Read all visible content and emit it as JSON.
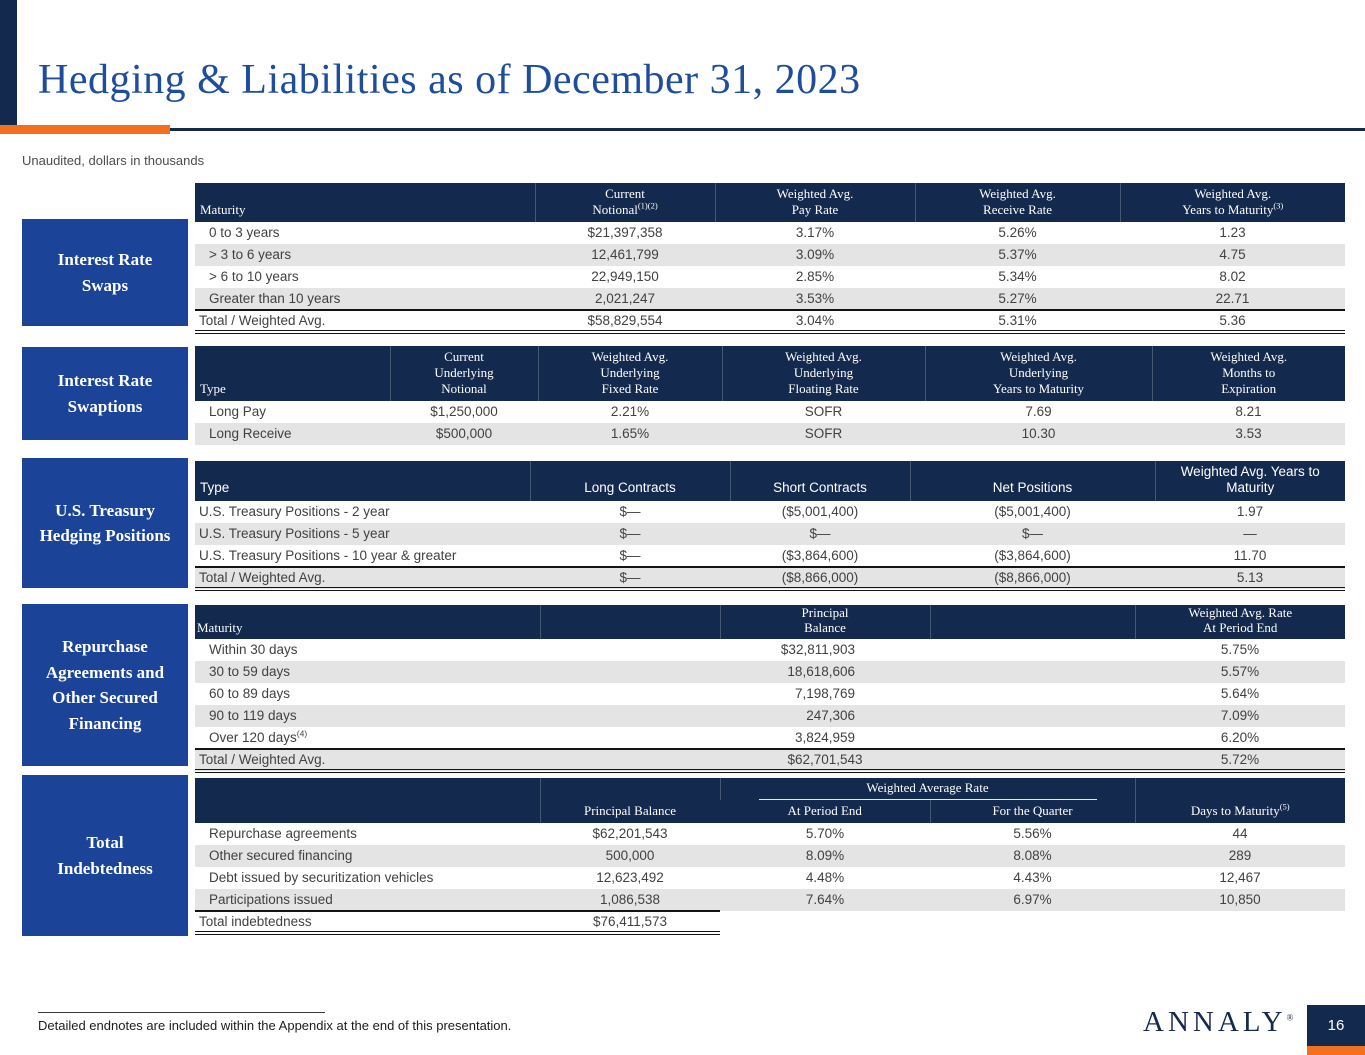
{
  "page": {
    "title": "Hedging & Liabilities as of December 31, 2023",
    "subtitle": "Unaudited, dollars in thousands",
    "footnote": "Detailed endnotes are included within the Appendix at the end of this presentation.",
    "logo_text": "ANNALY",
    "logo_mark": "®",
    "page_number": "16"
  },
  "colors": {
    "header_navy": "#14294e",
    "sidebar_blue": "#1b4397",
    "accent_orange": "#f37021",
    "title_blue": "#1e4d9c",
    "row_stripe": "#e4e4e4",
    "body_text": "#414141"
  },
  "sections": [
    {
      "id": "interest-rate-swaps",
      "label": "Interest Rate\nSwaps",
      "columns": [
        {
          "lines": [
            "Maturity"
          ],
          "align": "left"
        },
        {
          "lines": [
            "Current",
            "Notional"
          ],
          "sup": "(1)(2)"
        },
        {
          "lines": [
            "Weighted Avg.",
            "Pay Rate"
          ]
        },
        {
          "lines": [
            "Weighted Avg.",
            "Receive Rate"
          ]
        },
        {
          "lines": [
            "Weighted Avg.",
            "Years to Maturity"
          ],
          "sup": "(3)"
        }
      ],
      "rows": [
        [
          "0 to 3 years",
          "$21,397,358",
          "3.17%",
          "5.26%",
          "1.23"
        ],
        [
          "> 3 to 6 years",
          "12,461,799",
          "3.09%",
          "5.37%",
          "4.75"
        ],
        [
          "> 6 to 10 years",
          "22,949,150",
          "2.85%",
          "5.34%",
          "8.02"
        ],
        [
          "Greater than 10 years",
          "2,021,247",
          "3.53%",
          "5.27%",
          "22.71"
        ]
      ],
      "total": [
        "Total / Weighted Avg.",
        "$58,829,554",
        "3.04%",
        "5.31%",
        "5.36"
      ]
    },
    {
      "id": "interest-rate-swaptions",
      "label": "Interest Rate\nSwaptions",
      "columns": [
        {
          "lines": [
            "Type"
          ],
          "align": "left"
        },
        {
          "lines": [
            "Current",
            "Underlying",
            "Notional"
          ]
        },
        {
          "lines": [
            "Weighted Avg.",
            "Underlying",
            "Fixed Rate"
          ]
        },
        {
          "lines": [
            "Weighted Avg.",
            "Underlying",
            "Floating Rate"
          ]
        },
        {
          "lines": [
            "Weighted Avg.",
            "Underlying",
            "Years to Maturity"
          ]
        },
        {
          "lines": [
            "Weighted Avg.",
            "Months to",
            "Expiration"
          ]
        }
      ],
      "rows": [
        [
          "Long Pay",
          "$1,250,000",
          "2.21%",
          "SOFR",
          "7.69",
          "8.21"
        ],
        [
          "Long Receive",
          "$500,000",
          "1.65%",
          "SOFR",
          "10.30",
          "3.53"
        ]
      ],
      "total": null
    },
    {
      "id": "us-treasury-hedging-positions",
      "label": "U.S. Treasury\nHedging Positions",
      "columns": [
        {
          "lines": [
            "Type"
          ],
          "align": "left"
        },
        {
          "lines": [
            "Long Contracts"
          ]
        },
        {
          "lines": [
            "Short Contracts"
          ]
        },
        {
          "lines": [
            "Net Positions"
          ]
        },
        {
          "lines": [
            "Weighted Avg. Years to",
            "Maturity"
          ]
        }
      ],
      "rows": [
        [
          "U.S. Treasury Positions - 2 year",
          "$—",
          "($5,001,400)",
          "($5,001,400)",
          "1.97"
        ],
        [
          "U.S. Treasury Positions - 5 year",
          "$—",
          "$—",
          "$—",
          "—"
        ],
        [
          "U.S. Treasury Positions - 10 year & greater",
          "$—",
          "($3,864,600)",
          "($3,864,600)",
          "11.70"
        ]
      ],
      "total": [
        "Total / Weighted Avg.",
        "$—",
        "($8,866,000)",
        "($8,866,000)",
        "5.13"
      ]
    },
    {
      "id": "repurchase-agreements-and-other-secured-financing",
      "label": "Repurchase\nAgreements and\nOther Secured\nFinancing",
      "columns": [
        {
          "lines": [
            "Maturity"
          ],
          "align": "left"
        },
        {
          "lines": [
            ""
          ]
        },
        {
          "lines": [
            "Principal",
            "Balance"
          ]
        },
        {
          "lines": [
            ""
          ]
        },
        {
          "lines": [
            "Weighted Avg. Rate",
            "At Period End"
          ]
        }
      ],
      "rows": [
        [
          "Within 30 days",
          "",
          "$32,811,903",
          "",
          "5.75%"
        ],
        [
          "30 to 59 days",
          "",
          "18,618,606",
          "",
          "5.57%"
        ],
        [
          "60 to 89 days",
          "",
          "7,198,769",
          "",
          "5.64%"
        ],
        [
          "90 to 119 days",
          "",
          "247,306",
          "",
          "7.09%"
        ],
        [
          {
            "text": "Over 120 days",
            "sup": "(4)"
          },
          "",
          "3,824,959",
          "",
          "6.20%"
        ]
      ],
      "total": [
        "Total / Weighted Avg.",
        "",
        "$62,701,543",
        "",
        "5.72%"
      ]
    },
    {
      "id": "total-indebtedness",
      "label": "Total\nIndebtedness",
      "group_header": {
        "label": "Weighted Average Rate"
      },
      "columns": [
        {
          "lines": [
            ""
          ],
          "align": "left"
        },
        {
          "lines": [
            "Principal Balance"
          ]
        },
        {
          "lines": [
            "At Period End"
          ],
          "grouped": true
        },
        {
          "lines": [
            "For the Quarter"
          ],
          "grouped": true
        },
        {
          "lines": [
            "Days to Maturity"
          ],
          "sup": "(5)"
        }
      ],
      "rows": [
        [
          "Repurchase agreements",
          "$62,201,543",
          "5.70%",
          "5.56%",
          "44"
        ],
        [
          "Other secured financing",
          "500,000",
          "8.09%",
          "8.08%",
          "289"
        ],
        [
          "Debt issued by securitization vehicles",
          "12,623,492",
          "4.48%",
          "4.43%",
          "12,467"
        ],
        [
          "Participations issued",
          "1,086,538",
          "7.64%",
          "6.97%",
          "10,850"
        ]
      ],
      "total": [
        "Total indebtedness",
        "$76,411,573",
        "",
        "",
        ""
      ]
    }
  ]
}
